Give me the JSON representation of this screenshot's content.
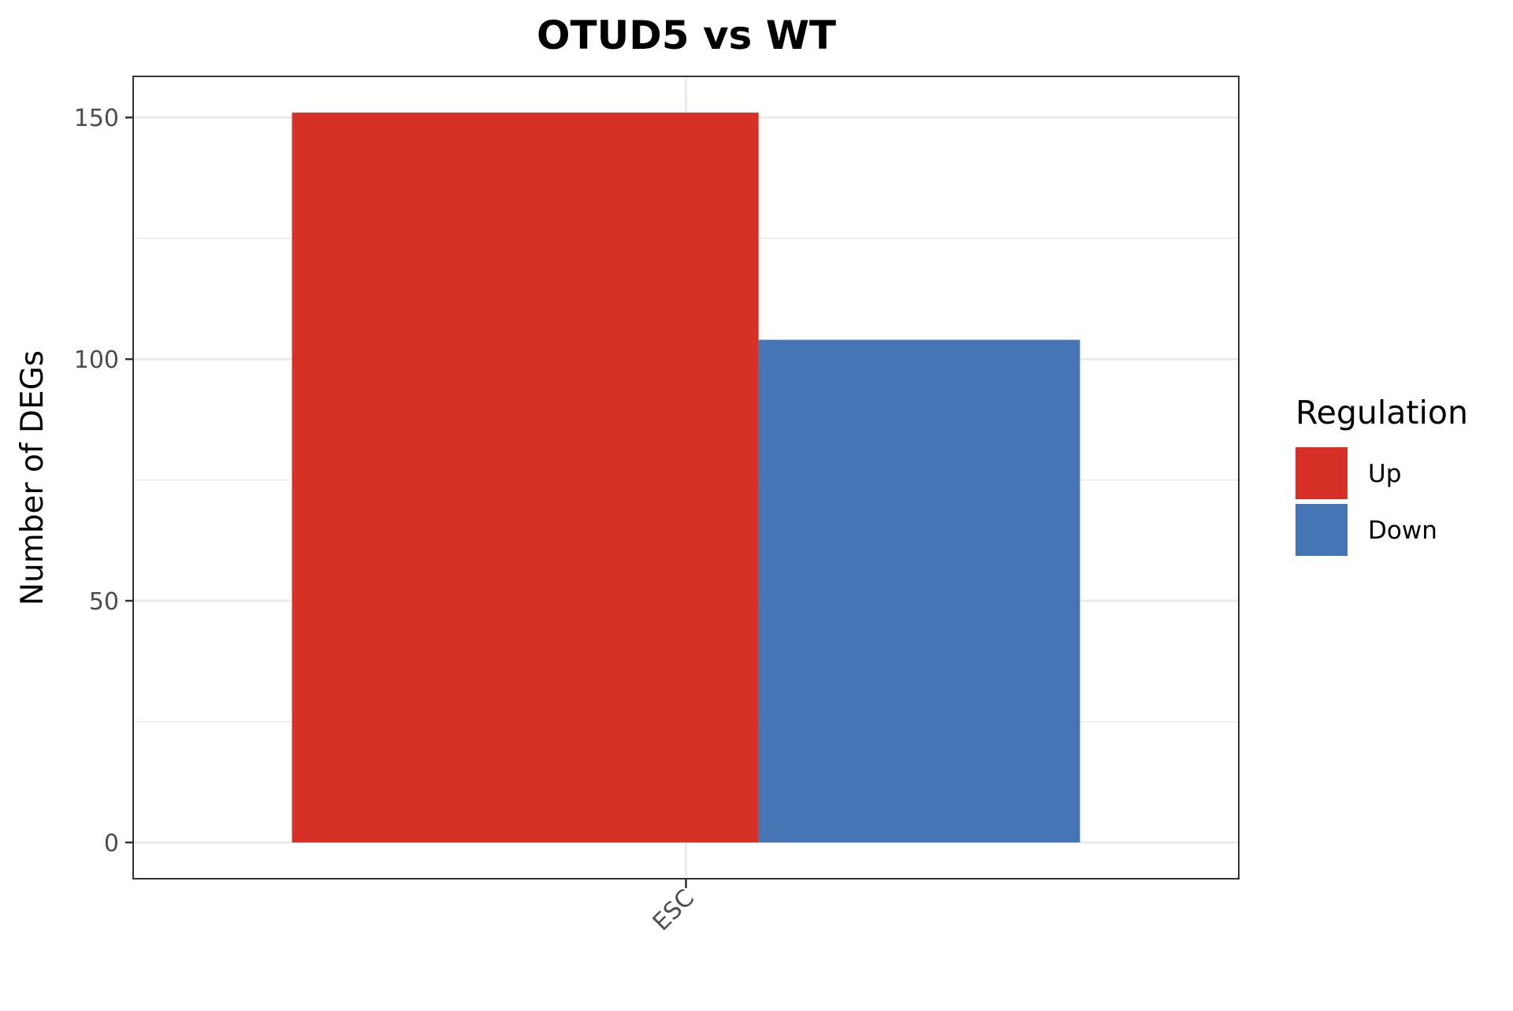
{
  "chart_data": {
    "type": "bar",
    "title": "OTUD5 vs WT",
    "xlabel": "",
    "ylabel": "Number of DEGs",
    "categories": [
      "ESC"
    ],
    "series": [
      {
        "name": "Up",
        "values": [
          151
        ],
        "color": "#d73027"
      },
      {
        "name": "Down",
        "values": [
          104
        ],
        "color": "#4575b4"
      }
    ],
    "ylim": [
      -7.5,
      158.5
    ],
    "y_ticks": [
      0,
      50,
      100,
      150
    ],
    "grid": true,
    "x_tick_rotation": 45,
    "legend": {
      "title": "Regulation",
      "position": "right",
      "entries": [
        "Up",
        "Down"
      ]
    }
  }
}
